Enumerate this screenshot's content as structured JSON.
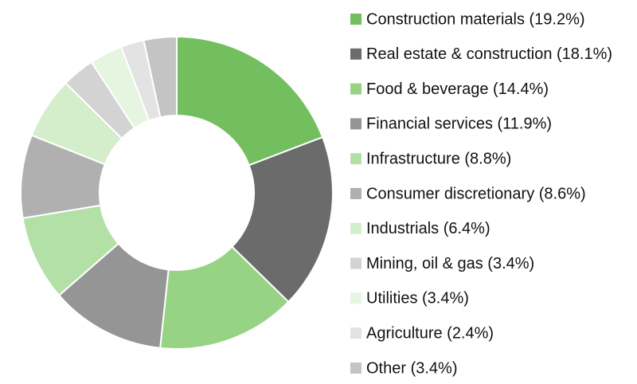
{
  "chart_data": {
    "type": "donut",
    "categories": [
      "Construction materials (19.2%)",
      "Real estate & construction (18.1%)",
      "Food & beverage (14.4%)",
      "Financial services (11.9%)",
      "Infrastructure (8.8%)",
      "Consumer discretionary (8.6%)",
      "Industrials (6.4%)",
      "Mining, oil & gas (3.4%)",
      "Utilities (3.4%)",
      "Agriculture (2.4%)",
      "Other (3.4%)"
    ],
    "values": [
      19.2,
      18.1,
      14.4,
      11.9,
      8.8,
      8.6,
      6.4,
      3.4,
      3.4,
      2.4,
      3.4
    ],
    "colors": [
      "#73bf5f",
      "#6b6b6b",
      "#97d385",
      "#959595",
      "#b3e0a6",
      "#b0b0b0",
      "#d4edcb",
      "#d3d3d3",
      "#e5f5e0",
      "#e3e3e3",
      "#c4c4c4"
    ]
  }
}
